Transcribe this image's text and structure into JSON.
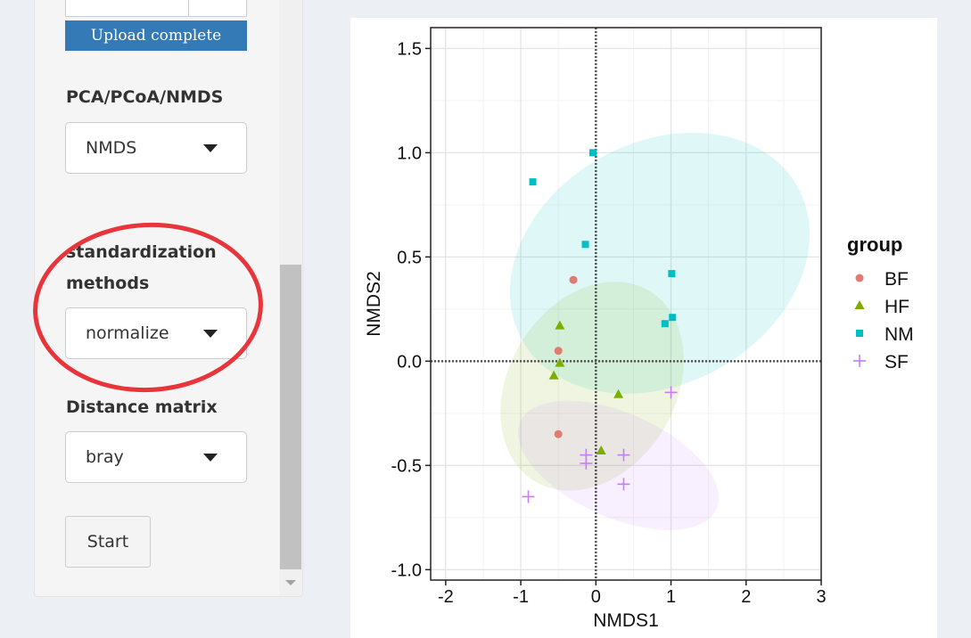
{
  "sidebar": {
    "upload_status": "Upload complete",
    "analysis": {
      "label": "PCA/PCoA/NMDS",
      "value": "NMDS"
    },
    "standardization": {
      "label_line1": "standardization",
      "label_line2": "methods",
      "value": "normalize"
    },
    "distance": {
      "label": "Distance matrix",
      "value": "bray"
    },
    "start_label": "Start"
  },
  "colors": {
    "BF": "#e07b6f",
    "HF": "#7cae00",
    "NM": "#00bfc4",
    "SF": "#c77cff",
    "highlight": "#e8353b",
    "primary": "#337ab7"
  },
  "chart_data": {
    "type": "scatter",
    "xlabel": "NMDS1",
    "ylabel": "NMDS2",
    "xlim": [
      -2.2,
      3.0
    ],
    "ylim": [
      -1.05,
      1.6
    ],
    "x_ticks": [
      -2,
      -1,
      0,
      1,
      2,
      3
    ],
    "y_ticks": [
      -1.0,
      -0.5,
      0.0,
      0.5,
      1.0,
      1.5
    ],
    "x_tick_labels": [
      "-2",
      "-1",
      "0",
      "1",
      "2",
      "3"
    ],
    "y_tick_labels": [
      "-1.0",
      "-0.5",
      "0.0",
      "0.5",
      "1.0",
      "1.5"
    ],
    "grid": true,
    "legend": {
      "title": "group",
      "position": "right"
    },
    "series": [
      {
        "name": "BF",
        "marker": "circle",
        "x": [
          -0.3,
          -0.5,
          -0.5
        ],
        "y": [
          0.39,
          0.05,
          -0.35
        ]
      },
      {
        "name": "HF",
        "marker": "triangle",
        "x": [
          -0.48,
          -0.48,
          -0.56,
          0.3,
          0.07
        ],
        "y": [
          0.17,
          -0.01,
          -0.07,
          -0.16,
          -0.43
        ]
      },
      {
        "name": "NM",
        "marker": "square",
        "x": [
          -0.04,
          -0.84,
          -0.14,
          1.01,
          1.02,
          0.92
        ],
        "y": [
          1.0,
          0.86,
          0.56,
          0.42,
          0.21,
          0.18
        ]
      },
      {
        "name": "SF",
        "marker": "plus",
        "x": [
          1.0,
          -0.13,
          -0.13,
          0.37,
          0.37,
          -0.9
        ],
        "y": [
          -0.15,
          -0.45,
          -0.49,
          -0.45,
          -0.59,
          -0.65
        ]
      }
    ],
    "ellipses": [
      {
        "name": "NM",
        "cx": 0.85,
        "cy": 0.47,
        "rx": 2.1,
        "ry": 0.58,
        "angle_deg": -29
      },
      {
        "name": "HF",
        "cx": -0.05,
        "cy": -0.12,
        "rx": 1.48,
        "ry": 0.4,
        "angle_deg": -59
      },
      {
        "name": "SF",
        "cx": 0.3,
        "cy": -0.5,
        "rx": 1.43,
        "ry": 0.25,
        "angle_deg": 24
      }
    ]
  }
}
